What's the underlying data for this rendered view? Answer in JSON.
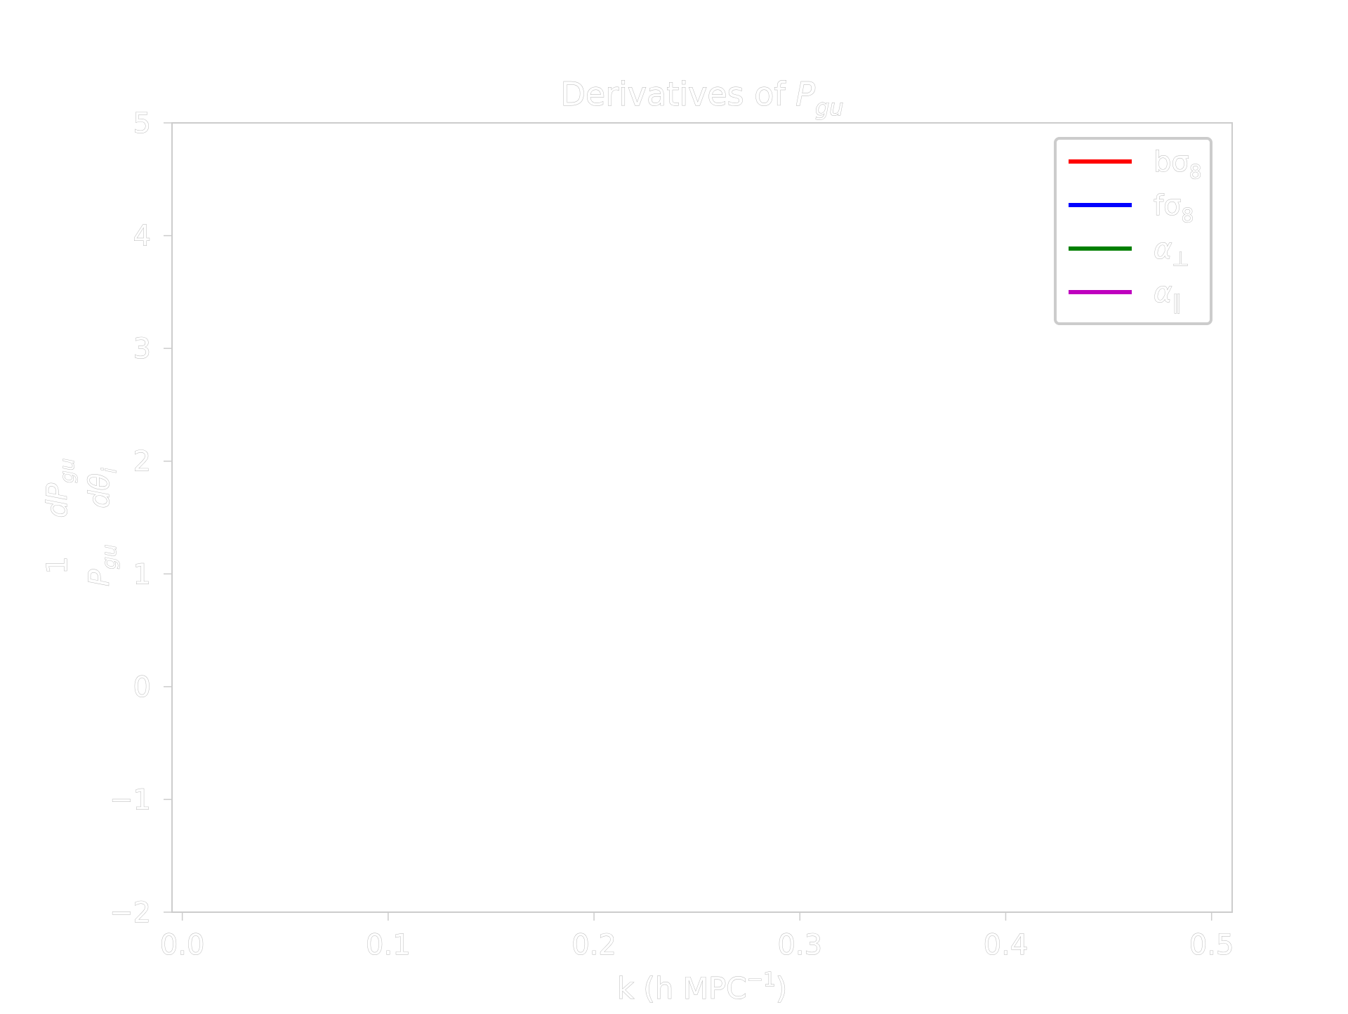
{
  "chart_data": {
    "type": "line",
    "title": {
      "main": "Derivatives of ",
      "var": "P",
      "sub": "gu"
    },
    "xlabel": {
      "main": "k (h MPC",
      "sup": "−1",
      "tail": ")"
    },
    "ylabel": {
      "one": "1",
      "p": "P",
      "p_sub": "gu",
      "dnum": "dP",
      "dnum_sub": "gu",
      "dden": "dθ",
      "dden_sub": "i"
    },
    "xlim": [
      -0.005,
      0.51
    ],
    "ylim": [
      -2,
      5
    ],
    "xticks": [
      "0.0",
      "0.1",
      "0.2",
      "0.3",
      "0.4",
      "0.5"
    ],
    "xtick_values": [
      0.0,
      0.1,
      0.2,
      0.3,
      0.4,
      0.5
    ],
    "yticks": [
      "−2",
      "−1",
      "0",
      "1",
      "2",
      "3",
      "4",
      "5"
    ],
    "ytick_values": [
      -2,
      -1,
      0,
      1,
      2,
      3,
      4,
      5
    ],
    "grid": false,
    "legend_position": "top-right",
    "series": [
      {
        "name": "bσ",
        "sub": "8",
        "color": "#ff0000",
        "x": [],
        "values": []
      },
      {
        "name": "fσ",
        "sub": "8",
        "color": "#0000ff",
        "x": [],
        "values": []
      },
      {
        "name": "α",
        "sub": "⊥",
        "color": "#007f00",
        "x": [],
        "values": []
      },
      {
        "name": "α",
        "sub": "∥",
        "color": "#bf00bf",
        "x": [],
        "values": []
      }
    ]
  }
}
